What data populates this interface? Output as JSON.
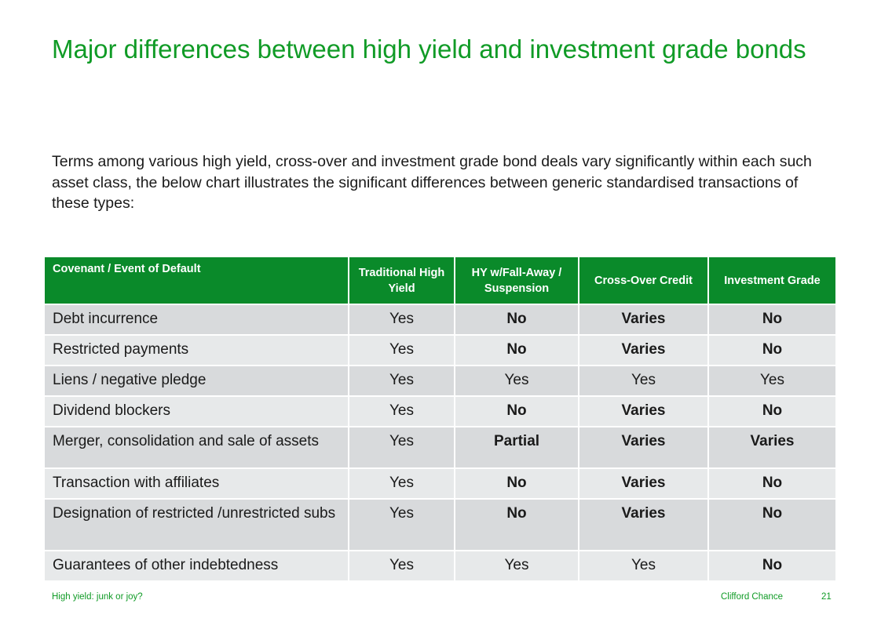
{
  "title": "Major differences between high yield and investment grade bonds",
  "intro": "Terms among various high yield, cross-over and investment grade bond deals vary significantly within each such asset class, the below chart illustrates the significant differences between generic standardised transactions of these types:",
  "table": {
    "headers": [
      "Covenant / Event of Default",
      "Traditional High Yield",
      "HY w/Fall-Away / Suspension",
      "Cross-Over Credit",
      "Investment Grade"
    ],
    "rows": [
      {
        "label": "Debt incurrence",
        "cells": [
          "Yes",
          "No",
          "Varies",
          "No"
        ]
      },
      {
        "label": "Restricted payments",
        "cells": [
          "Yes",
          "No",
          "Varies",
          "No"
        ]
      },
      {
        "label": "Liens / negative pledge",
        "cells": [
          "Yes",
          "Yes",
          "Yes",
          "Yes"
        ]
      },
      {
        "label": "Dividend blockers",
        "cells": [
          "Yes",
          "No",
          "Varies",
          "No"
        ]
      },
      {
        "label": "Merger, consolidation and sale of assets",
        "cells": [
          "Yes",
          "Partial",
          "Varies",
          "Varies"
        ]
      },
      {
        "label": "Transaction with affiliates",
        "cells": [
          "Yes",
          "No",
          "Varies",
          "No"
        ]
      },
      {
        "label": "Designation of restricted /unrestricted subs",
        "cells": [
          "Yes",
          "No",
          "Varies",
          "No"
        ]
      },
      {
        "label": "Guarantees of other indebtedness",
        "cells": [
          "Yes",
          "Yes",
          "Yes",
          "No"
        ]
      }
    ]
  },
  "footer": {
    "left": "High yield: junk or joy?",
    "company": "Clifford Chance",
    "page": "21"
  },
  "colors": {
    "accent": "#109b26",
    "header_bg": "#0a8a2a",
    "row_dark": "#d8dadc",
    "row_light": "#e7e9ea"
  }
}
